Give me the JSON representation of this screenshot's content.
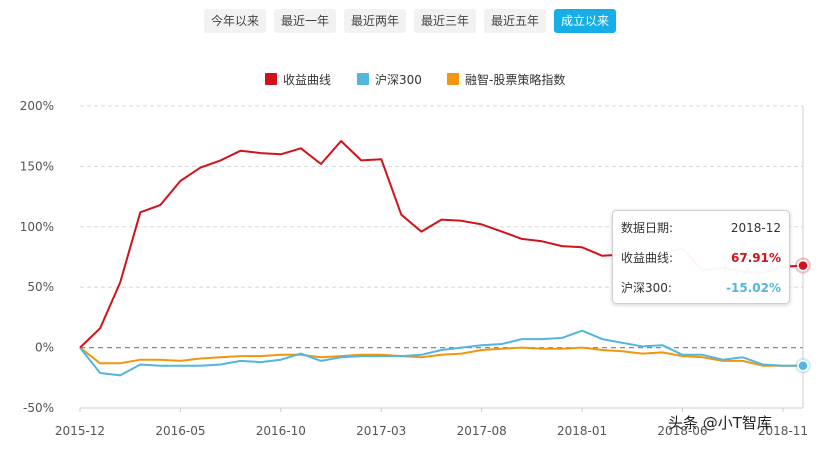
{
  "tabs": [
    {
      "label": "今年以来",
      "active": false
    },
    {
      "label": "最近一年",
      "active": false
    },
    {
      "label": "最近两年",
      "active": false
    },
    {
      "label": "最近三年",
      "active": false
    },
    {
      "label": "最近五年",
      "active": false
    },
    {
      "label": "成立以来",
      "active": true
    }
  ],
  "colors": {
    "accent": "#16aee6",
    "series1": "#d0121b",
    "series2": "#53b5e0",
    "series3": "#f2960f"
  },
  "tooltip": {
    "date_label": "数据日期:",
    "date_value": "2018-12",
    "s1_label": "收益曲线:",
    "s1_value": "67.91%",
    "s2_label": "沪深300:",
    "s2_value": "-15.02%"
  },
  "watermark": "头条 @小T智库",
  "chart_data": {
    "type": "line",
    "legend_position": "top-center",
    "grid": true,
    "ylim": [
      -50,
      200
    ],
    "yticks": [
      "200%",
      "150%",
      "100%",
      "50%",
      "0%",
      "-50%"
    ],
    "ytick_values": [
      200,
      150,
      100,
      50,
      0,
      -50
    ],
    "xticks": [
      "2015-12",
      "2016-05",
      "2016-10",
      "2017-03",
      "2017-08",
      "2018-01",
      "2018-06",
      "2018-11"
    ],
    "x": [
      "2015-12",
      "2016-01",
      "2016-02",
      "2016-03",
      "2016-04",
      "2016-05",
      "2016-06",
      "2016-07",
      "2016-08",
      "2016-09",
      "2016-10",
      "2016-11",
      "2016-12",
      "2017-01",
      "2017-02",
      "2017-03",
      "2017-04",
      "2017-05",
      "2017-06",
      "2017-07",
      "2017-08",
      "2017-09",
      "2017-10",
      "2017-11",
      "2017-12",
      "2018-01",
      "2018-02",
      "2018-03",
      "2018-04",
      "2018-05",
      "2018-06",
      "2018-07",
      "2018-08",
      "2018-09",
      "2018-10",
      "2018-11",
      "2018-12"
    ],
    "series": [
      {
        "name": "收益曲线",
        "values": [
          0,
          16,
          54,
          112,
          118,
          138,
          149,
          155,
          163,
          161,
          160,
          165,
          152,
          171,
          155,
          156,
          110,
          96,
          106,
          105,
          102,
          96,
          90,
          88,
          84,
          83,
          76,
          77,
          77,
          78,
          82,
          64,
          66,
          63,
          62,
          67,
          67.91
        ]
      },
      {
        "name": "沪深300",
        "values": [
          0,
          -21,
          -23,
          -14,
          -15,
          -15,
          -15,
          -14,
          -11,
          -12,
          -10,
          -5,
          -11,
          -8,
          -7,
          -7,
          -7,
          -6,
          -2,
          0,
          2,
          3,
          7,
          7,
          8,
          14,
          7,
          4,
          1,
          2,
          -6,
          -6,
          -10,
          -8,
          -14,
          -15,
          -15.02
        ]
      },
      {
        "name": "融智-股票策略指数",
        "values": [
          0,
          -13,
          -13,
          -10,
          -10,
          -11,
          -9,
          -8,
          -7,
          -7,
          -6,
          -6,
          -8,
          -7,
          -6,
          -6,
          -7,
          -8,
          -6,
          -5,
          -2,
          -1,
          0,
          -1,
          -1,
          0,
          -2,
          -3,
          -5,
          -4,
          -7,
          -8,
          -11,
          -11,
          -15,
          -15,
          -15
        ]
      }
    ]
  }
}
